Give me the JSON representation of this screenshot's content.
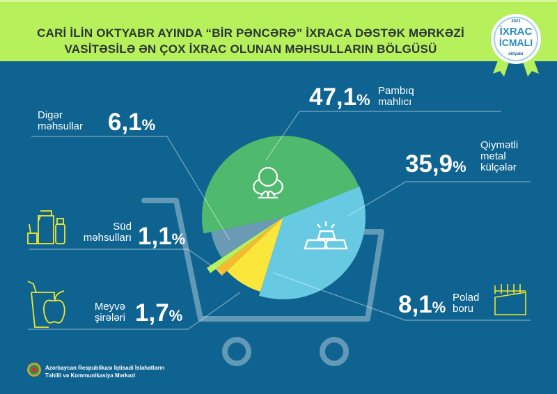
{
  "header": {
    "title_line1": "CARİ İLİN OKTYABR AYINDA “BİR PƏNCƏRƏ” İXRACA DƏSTƏK MƏRKƏZİ",
    "title_line2": "VASİTƏSİLƏ ƏN ÇOX İXRAC OLUNAN MƏHSULLARIN BÖLGÜSÜ",
    "badge": {
      "year": "2021",
      "line1": "İXRAC",
      "line2": "İCMALI",
      "month": "oktyabr"
    }
  },
  "footer": {
    "line1": "Azərbaycan Respublikası İqtisadi İslahatların",
    "line2": "Təhlili və Kommunikasiya Mərkəzi"
  },
  "chart_data": {
    "type": "pie",
    "title": "Cari ilin oktyabr ayında “Bir pəncərə” ixraca dəstək mərkəzi vasitəsilə ən çox ixrac olunan məhsulların bölgüsü",
    "unit": "%",
    "slices": [
      {
        "label": "Qiymətli metal külçələr",
        "label_lines": [
          "Qiymətli",
          "metal",
          "külçələr"
        ],
        "value": 35.9,
        "value_text": "35,9",
        "color": "#67c9e2",
        "icon": "gold-bars-icon"
      },
      {
        "label": "Polad boru",
        "label_lines": [
          "Polad",
          "boru"
        ],
        "value": 8.1,
        "value_text": "8,1",
        "color": "#fbe63c",
        "icon": "steel-pipe-icon"
      },
      {
        "label": "Meyvə şirələri",
        "label_lines": [
          "Meyvə",
          "şirələri"
        ],
        "value": 1.7,
        "value_text": "1,7",
        "color": "#f4bb2e",
        "icon": "juice-apple-icon"
      },
      {
        "label": "Süd məhsulları",
        "label_lines": [
          "Süd",
          "məhsulları"
        ],
        "value": 1.1,
        "value_text": "1,1",
        "color": "#b6f05a",
        "icon": "dairy-icon"
      },
      {
        "label": "Digər məhsullar",
        "label_lines": [
          "Digər",
          "məhsullar"
        ],
        "value": 6.1,
        "value_text": "6,1",
        "color": "#6a9ab4",
        "icon": ""
      },
      {
        "label": "Pambıq mahlıcı",
        "label_lines": [
          "Pambıq",
          "mahlıcı"
        ],
        "value": 47.1,
        "value_text": "47,1",
        "color": "#4fba6e",
        "icon": "cotton-icon"
      }
    ],
    "percent_sign": "%"
  }
}
